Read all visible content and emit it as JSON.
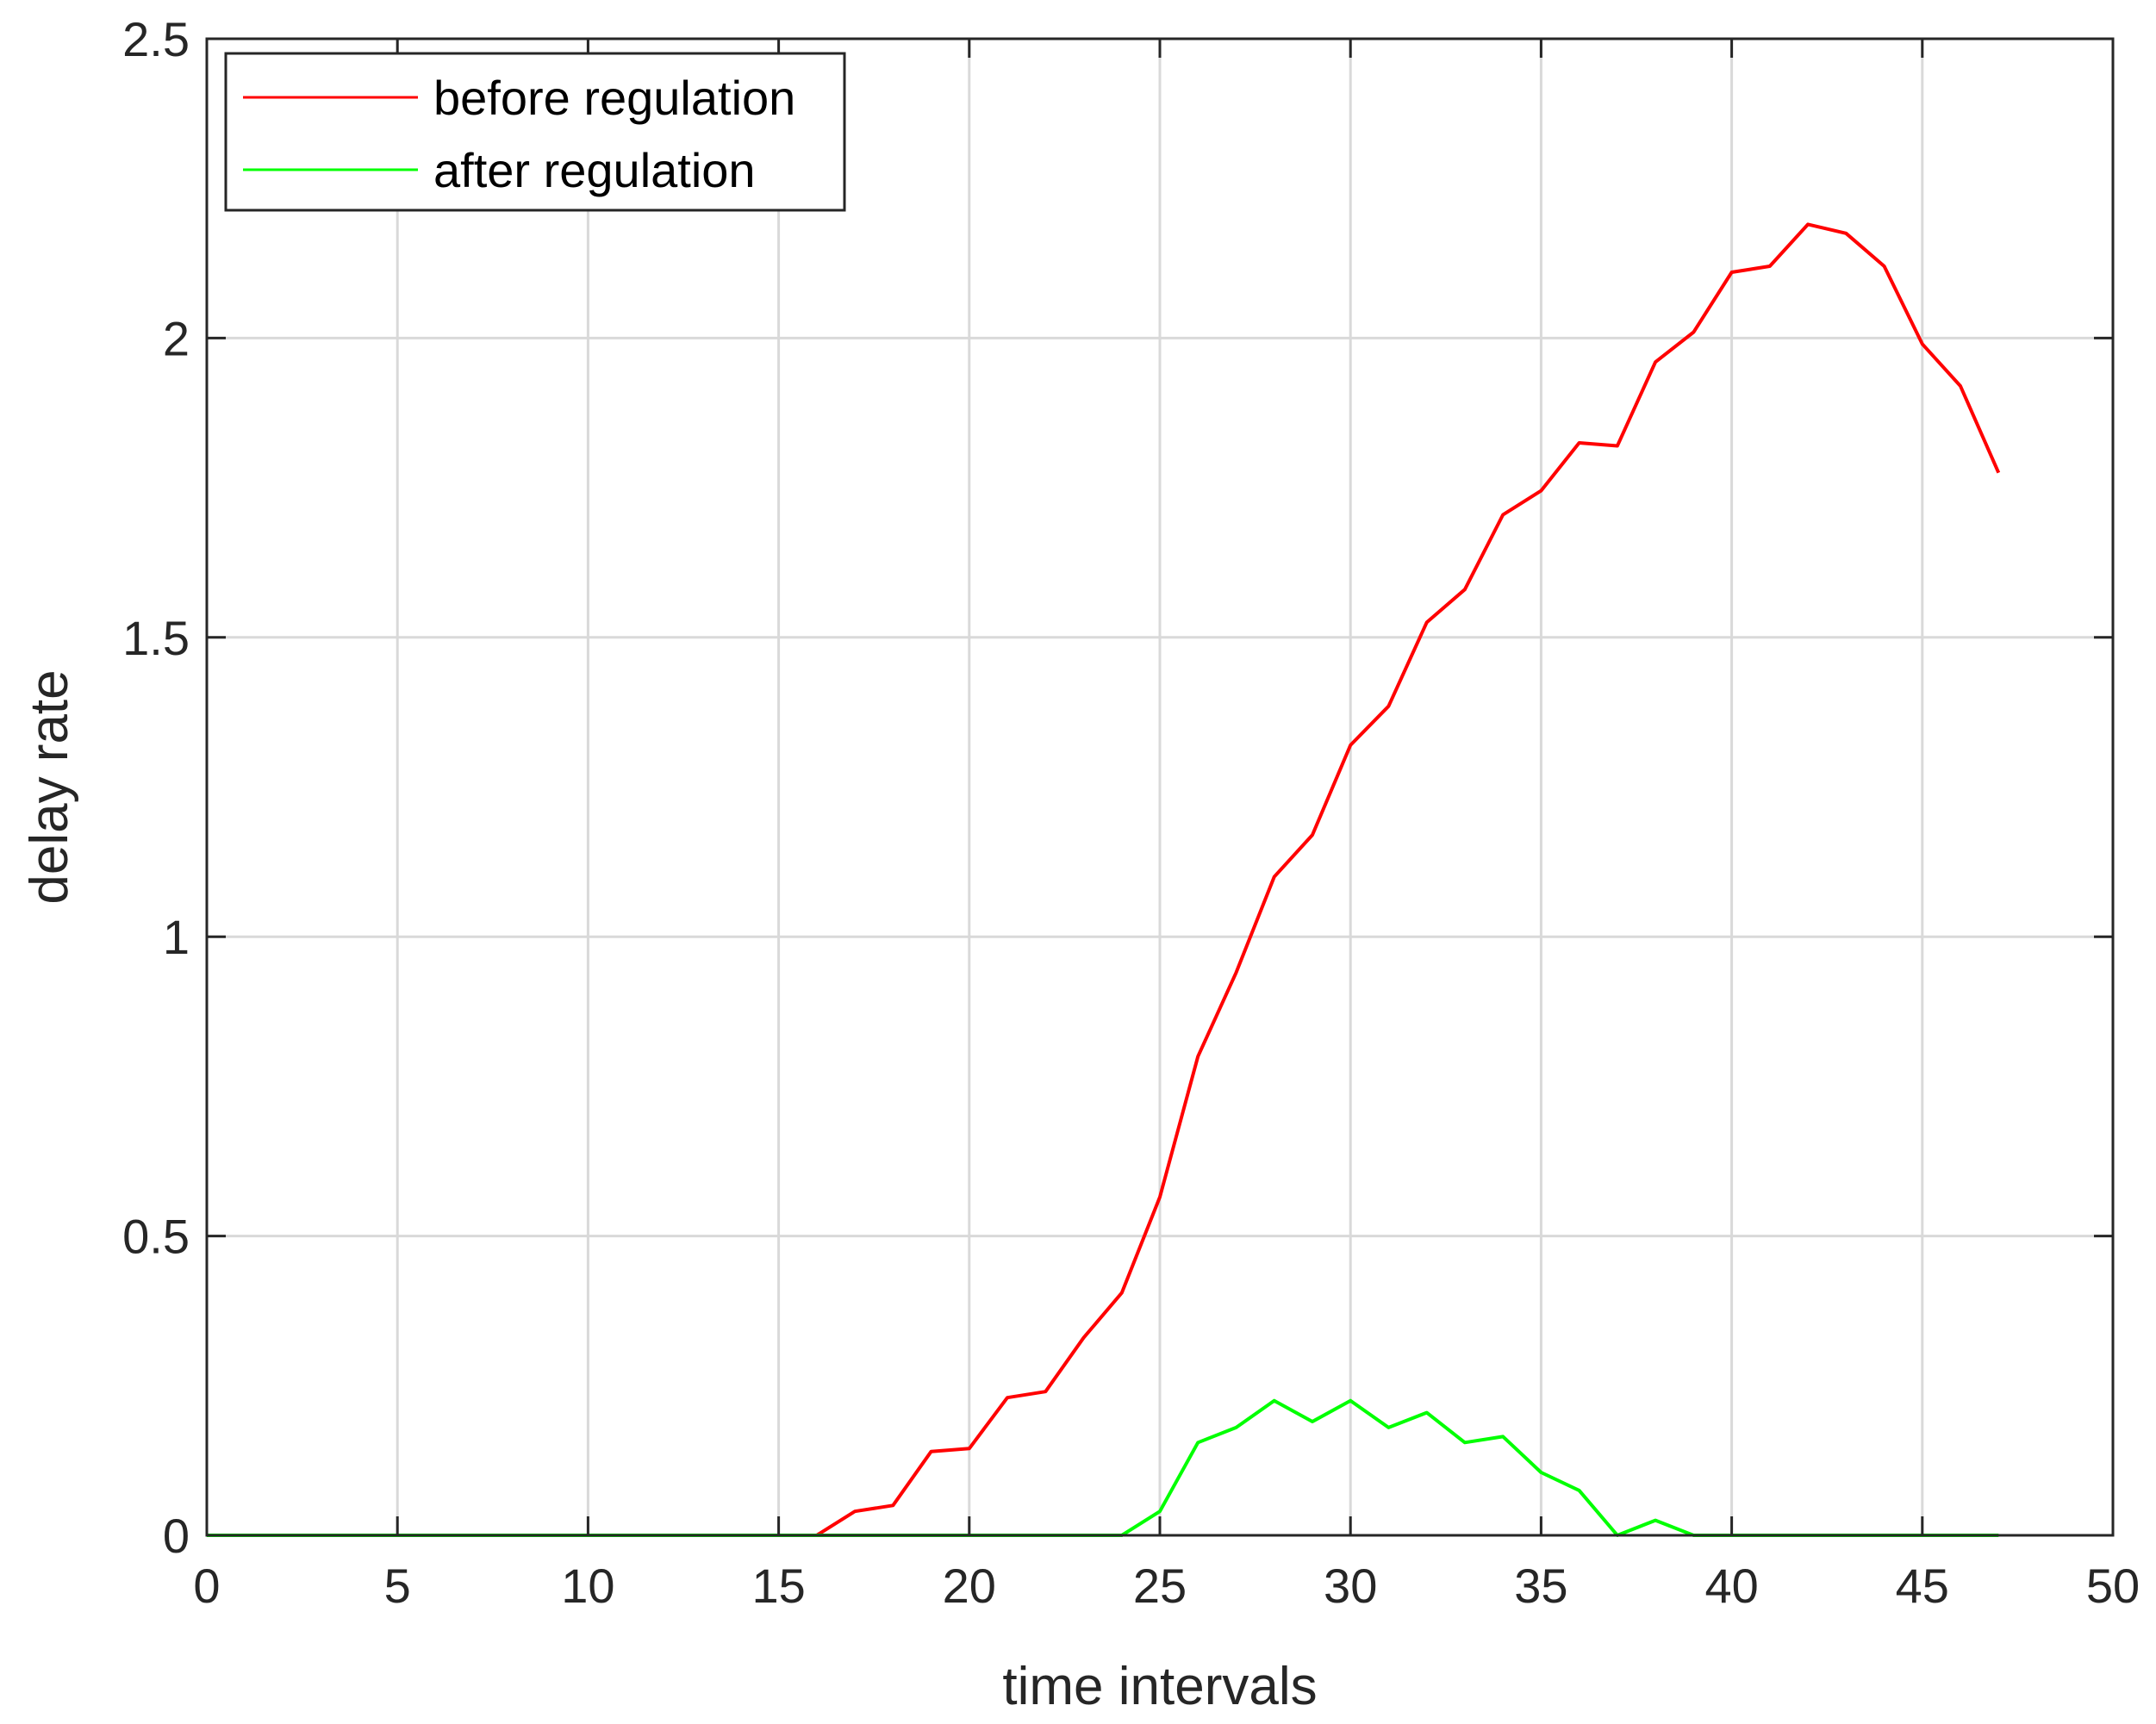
{
  "colors": {
    "before": "#ff0000",
    "after": "#00ff00",
    "grid": "#d9d9d9",
    "axis": "#262626",
    "background": "#ffffff"
  },
  "chart_data": {
    "type": "line",
    "xlabel": "time intervals",
    "ylabel": "delay rate",
    "xlim": [
      0,
      50
    ],
    "ylim": [
      0,
      2.5
    ],
    "xticks": [
      0,
      5,
      10,
      15,
      20,
      25,
      30,
      35,
      40,
      45,
      50
    ],
    "yticks": [
      0,
      0.5,
      1,
      1.5,
      2,
      2.5
    ],
    "xtick_labels": [
      "0",
      "5",
      "10",
      "15",
      "20",
      "25",
      "30",
      "35",
      "40",
      "45",
      "50"
    ],
    "ytick_labels": [
      "0",
      "0.5",
      "1",
      "1.5",
      "2",
      "2.5"
    ],
    "grid": true,
    "legend_position": "top-left",
    "series": [
      {
        "name": "before regulation",
        "color": "#ff0000",
        "x": [
          0,
          1,
          2,
          3,
          4,
          5,
          6,
          7,
          8,
          9,
          10,
          11,
          12,
          13,
          14,
          15,
          16,
          17,
          18,
          19,
          20,
          21,
          22,
          23,
          24,
          25,
          26,
          27,
          28,
          29,
          30,
          31,
          32,
          33,
          34,
          35,
          36,
          37,
          38,
          39,
          40,
          41,
          42,
          43,
          44,
          45,
          46,
          47
        ],
        "y": [
          0,
          0,
          0,
          0,
          0,
          0,
          0,
          0,
          0,
          0,
          0,
          0,
          0,
          0,
          0,
          0,
          0,
          0.04,
          0.05,
          0.14,
          0.145,
          0.23,
          0.24,
          0.33,
          0.405,
          0.565,
          0.8,
          0.94,
          1.1,
          1.17,
          1.32,
          1.385,
          1.525,
          1.58,
          1.705,
          1.745,
          1.825,
          1.82,
          1.96,
          2.01,
          2.11,
          2.12,
          2.19,
          2.175,
          2.12,
          1.99,
          1.92,
          1.775
        ]
      },
      {
        "name": "after regulation",
        "color": "#00ff00",
        "x": [
          0,
          1,
          2,
          3,
          4,
          5,
          6,
          7,
          8,
          9,
          10,
          11,
          12,
          13,
          14,
          15,
          16,
          17,
          18,
          19,
          20,
          21,
          22,
          23,
          24,
          25,
          26,
          27,
          28,
          29,
          30,
          31,
          32,
          33,
          34,
          35,
          36,
          37,
          38,
          39,
          40,
          41,
          42,
          43,
          44,
          45,
          46,
          47
        ],
        "y": [
          0,
          0,
          0,
          0,
          0,
          0,
          0,
          0,
          0,
          0,
          0,
          0,
          0,
          0,
          0,
          0,
          0,
          0,
          0,
          0,
          0,
          0,
          0,
          0,
          0,
          0.04,
          0.155,
          0.18,
          0.225,
          0.19,
          0.225,
          0.18,
          0.205,
          0.155,
          0.165,
          0.105,
          0.075,
          0,
          0.025,
          0,
          0,
          0,
          0,
          0,
          0,
          0,
          0,
          0
        ]
      }
    ]
  }
}
